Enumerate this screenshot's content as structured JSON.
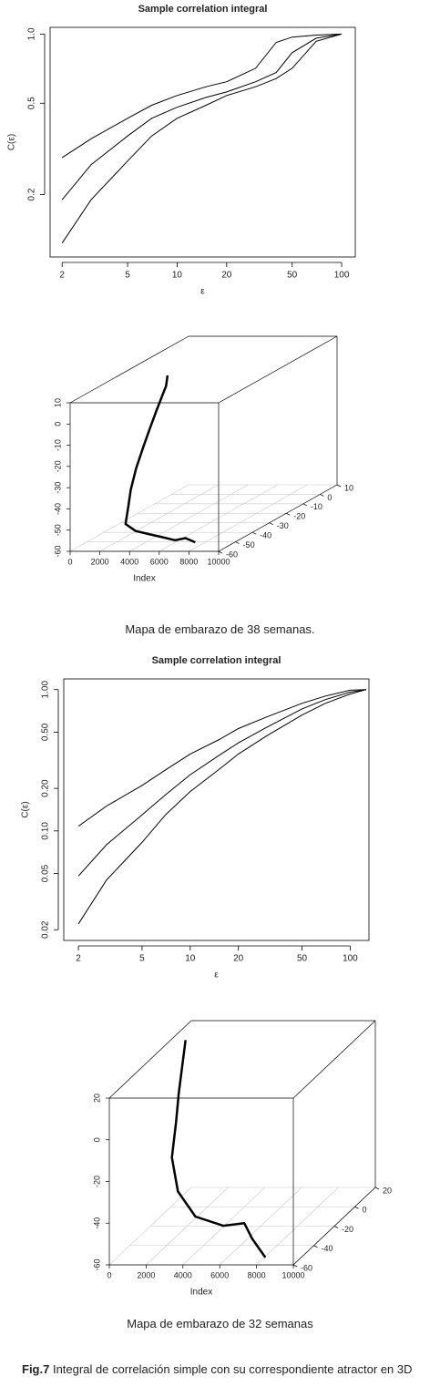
{
  "chart_data": [
    {
      "type": "line",
      "title": "Sample correlation integral",
      "xlabel": "ε",
      "ylabel": "C(ε)",
      "log": "xy",
      "x": [
        2,
        3,
        5,
        7,
        10,
        15,
        20,
        30,
        40,
        50,
        70,
        100
      ],
      "series": [
        {
          "color": "#000000",
          "values": [
            0.29,
            0.35,
            0.43,
            0.49,
            0.54,
            0.59,
            0.62,
            0.71,
            0.92,
            0.97,
            0.99,
            1.0
          ]
        },
        {
          "color": "#000000",
          "values": [
            0.19,
            0.27,
            0.36,
            0.43,
            0.48,
            0.53,
            0.56,
            0.62,
            0.68,
            0.83,
            0.96,
            1.0
          ]
        },
        {
          "color": "#000000",
          "values": [
            0.123,
            0.19,
            0.28,
            0.36,
            0.43,
            0.49,
            0.54,
            0.59,
            0.64,
            0.71,
            0.93,
            1.0
          ]
        }
      ],
      "xlim": [
        1.69,
        121
      ],
      "xticks": [
        2,
        5,
        10,
        20,
        50,
        100
      ],
      "ylim": [
        0.107,
        1.07
      ],
      "yticks": [
        0.2,
        0.5,
        {
          "value": 1,
          "label": "1.0"
        }
      ]
    },
    {
      "type": "line3d",
      "xlabel": "Index",
      "grid": true,
      "xlim": [
        0,
        10000
      ],
      "xticks": [
        0,
        2000,
        4000,
        6000,
        8000,
        10000
      ],
      "ylim": [
        -60,
        10
      ],
      "yticks": [
        10,
        0,
        -10,
        -20,
        -30,
        -40,
        -50,
        -60
      ],
      "zlim": [
        -60,
        10
      ],
      "zticks": [
        10,
        0,
        -10,
        -20,
        -30,
        -40,
        -50,
        -60
      ],
      "series": [
        {
          "color": "#000000",
          "x": [
            2000,
            1900,
            1800,
            1700,
            1600,
            1520,
            1600,
            1800,
            2200,
            2590,
            3500,
            4500,
            5500,
            6500,
            7200,
            7860
          ],
          "y": [
            -20,
            -20,
            -22,
            -24,
            -27,
            -30,
            -35,
            -40,
            -45,
            -50,
            -52,
            -53,
            -54,
            -55,
            -55,
            -55
          ],
          "z": [
            5,
            0,
            -5,
            -10,
            -17,
            -24,
            -32,
            -40,
            -46,
            -51.6,
            -54,
            -55,
            -56,
            -57,
            -56,
            -58
          ]
        }
      ]
    },
    {
      "type": "line",
      "title": "Sample correlation integral",
      "xlabel": "ε",
      "ylabel": "C(ε)",
      "log": "xy",
      "x": [
        2,
        3,
        5,
        7,
        10,
        15,
        20,
        30,
        50,
        70,
        100,
        126
      ],
      "series": [
        {
          "color": "#000000",
          "values": [
            0.108,
            0.15,
            0.21,
            0.27,
            0.35,
            0.44,
            0.53,
            0.64,
            0.8,
            0.9,
            0.99,
            1.0
          ]
        },
        {
          "color": "#000000",
          "values": [
            0.048,
            0.08,
            0.13,
            0.18,
            0.25,
            0.34,
            0.42,
            0.54,
            0.73,
            0.85,
            0.96,
            1.0
          ]
        },
        {
          "color": "#000000",
          "values": [
            0.022,
            0.045,
            0.083,
            0.13,
            0.19,
            0.27,
            0.35,
            0.47,
            0.66,
            0.8,
            0.93,
            1.0
          ]
        }
      ],
      "xlim": [
        1.62,
        131
      ],
      "xticks": [
        2,
        5,
        10,
        20,
        50,
        100
      ],
      "ylim": [
        0.0168,
        1.19
      ],
      "yticks": [
        0.02,
        0.05,
        {
          "value": 0.1,
          "label": "0.10"
        },
        {
          "value": 0.2,
          "label": "0.20"
        },
        {
          "value": 0.5,
          "label": "0.50"
        },
        {
          "value": 1,
          "label": "1.00"
        }
      ]
    },
    {
      "type": "line3d",
      "xlabel": "Index",
      "grid": true,
      "xlim": [
        0,
        10000
      ],
      "xticks": [
        0,
        2000,
        4000,
        6000,
        8000,
        10000
      ],
      "ylim": [
        -60,
        20
      ],
      "yticks": [
        20,
        0,
        -20,
        -40,
        -60
      ],
      "zlim": [
        -60,
        20
      ],
      "zticks": [
        20,
        0,
        -20,
        -40,
        -60
      ],
      "series": [
        {
          "color": "#000000",
          "x": [
            800,
            900,
            1100,
            1400,
            1730,
            2500,
            3843,
            5359,
            6500,
            7200,
            8200
          ],
          "y": [
            0,
            -5,
            -12,
            -20,
            -30,
            -38,
            -45,
            -45,
            -45,
            -50,
            -55
          ],
          "z": [
            20,
            10,
            0,
            -10,
            -22.4,
            -35,
            -43.8,
            -48.2,
            -47,
            -52,
            -58.8
          ]
        }
      ]
    }
  ],
  "captions": [
    "Mapa de embarazo de 38 semanas.",
    "Mapa de embarazo de 32 semanas"
  ],
  "figure_caption": {
    "label": "Fig.7",
    "text": "Integral de correlación simple con su correspondiente atractor en 3D"
  }
}
